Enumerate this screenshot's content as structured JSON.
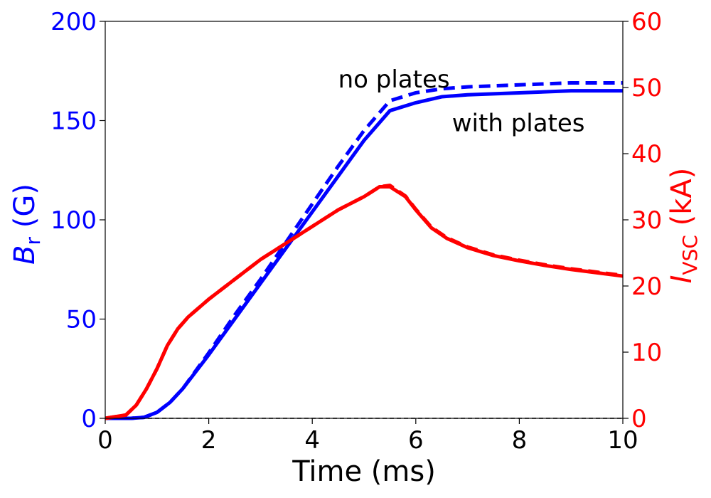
{
  "chart_data": {
    "type": "line",
    "xlabel": "Time (ms)",
    "xlim": [
      0,
      10
    ],
    "xticks": [
      0,
      2,
      4,
      6,
      8,
      10
    ],
    "y_left": {
      "label_main": "B",
      "label_sub": "r",
      "label_unit": " (G)",
      "lim": [
        0,
        200
      ],
      "ticks": [
        0,
        50,
        100,
        150,
        200
      ],
      "color": "#0000ff"
    },
    "y_right": {
      "label_main": "I",
      "label_sub": "VSC",
      "label_unit": " (kA)",
      "lim": [
        0,
        60
      ],
      "ticks": [
        0,
        10,
        20,
        30,
        40,
        50,
        60
      ],
      "color": "#ff0000"
    },
    "annotations": [
      {
        "text": "no plates",
        "x": 4.5,
        "y": 171
      },
      {
        "text": "with plates",
        "x": 6.7,
        "y": 149
      }
    ],
    "series": [
      {
        "name": "B_r with plates",
        "axis": "left",
        "style": "solid",
        "color": "#0000ff",
        "x": [
          0,
          0.5,
          0.75,
          1.0,
          1.25,
          1.5,
          2.0,
          2.5,
          3.0,
          3.5,
          4.0,
          4.5,
          5.0,
          5.5,
          6.0,
          6.5,
          7.0,
          8.0,
          9.0,
          10.0
        ],
        "y": [
          0,
          0,
          0.5,
          3,
          8,
          15,
          32,
          50,
          68,
          86,
          104,
          122,
          140,
          155,
          159,
          162,
          163,
          164,
          165,
          165
        ]
      },
      {
        "name": "B_r no plates",
        "axis": "left",
        "style": "dashed",
        "color": "#0000ff",
        "x": [
          0,
          0.5,
          0.75,
          1.0,
          1.25,
          1.5,
          2.0,
          2.5,
          3.0,
          3.5,
          4.0,
          4.5,
          5.0,
          5.5,
          6.0,
          6.5,
          7.0,
          8.0,
          9.0,
          10.0
        ],
        "y": [
          0,
          0,
          0.5,
          3,
          8,
          15,
          33,
          52,
          70,
          89,
          108,
          127,
          145,
          160,
          164,
          166,
          167,
          168,
          169,
          169
        ]
      },
      {
        "name": "I_VSC with plates",
        "axis": "right",
        "style": "solid",
        "color": "#ff0000",
        "x": [
          0,
          0.4,
          0.6,
          0.8,
          1.0,
          1.2,
          1.4,
          1.6,
          2.0,
          2.5,
          3.0,
          3.5,
          4.0,
          4.5,
          5.0,
          5.3,
          5.5,
          5.8,
          6.0,
          6.3,
          6.6,
          7.0,
          7.5,
          8.0,
          8.5,
          9.0,
          9.5,
          10.0
        ],
        "y": [
          0,
          0.5,
          2,
          4.5,
          7.5,
          11,
          13.5,
          15.3,
          18,
          21,
          24,
          26.5,
          29,
          31.5,
          33.5,
          35,
          35,
          33.5,
          31.5,
          28.8,
          27.2,
          25.8,
          24.6,
          23.8,
          23.1,
          22.5,
          22,
          21.5
        ]
      },
      {
        "name": "I_VSC no plates",
        "axis": "right",
        "style": "dashed",
        "color": "#ff0000",
        "x": [
          0,
          0.4,
          0.6,
          0.8,
          1.0,
          1.2,
          1.4,
          1.6,
          2.0,
          2.5,
          3.0,
          3.5,
          4.0,
          4.5,
          5.0,
          5.3,
          5.5,
          5.8,
          6.0,
          6.3,
          6.6,
          7.0,
          7.5,
          8.0,
          8.5,
          9.0,
          9.5,
          10.0
        ],
        "y": [
          0,
          0.5,
          2,
          4.5,
          7.5,
          11,
          13.5,
          15.3,
          18,
          21,
          24,
          26.5,
          29,
          31.5,
          33.5,
          35,
          35.2,
          33.6,
          31.6,
          28.9,
          27.3,
          25.9,
          24.7,
          23.9,
          23.2,
          22.6,
          22.1,
          21.6
        ]
      }
    ],
    "reference_line": {
      "axis": "left",
      "y": 0,
      "style": "dashed",
      "color": "#000000"
    }
  }
}
